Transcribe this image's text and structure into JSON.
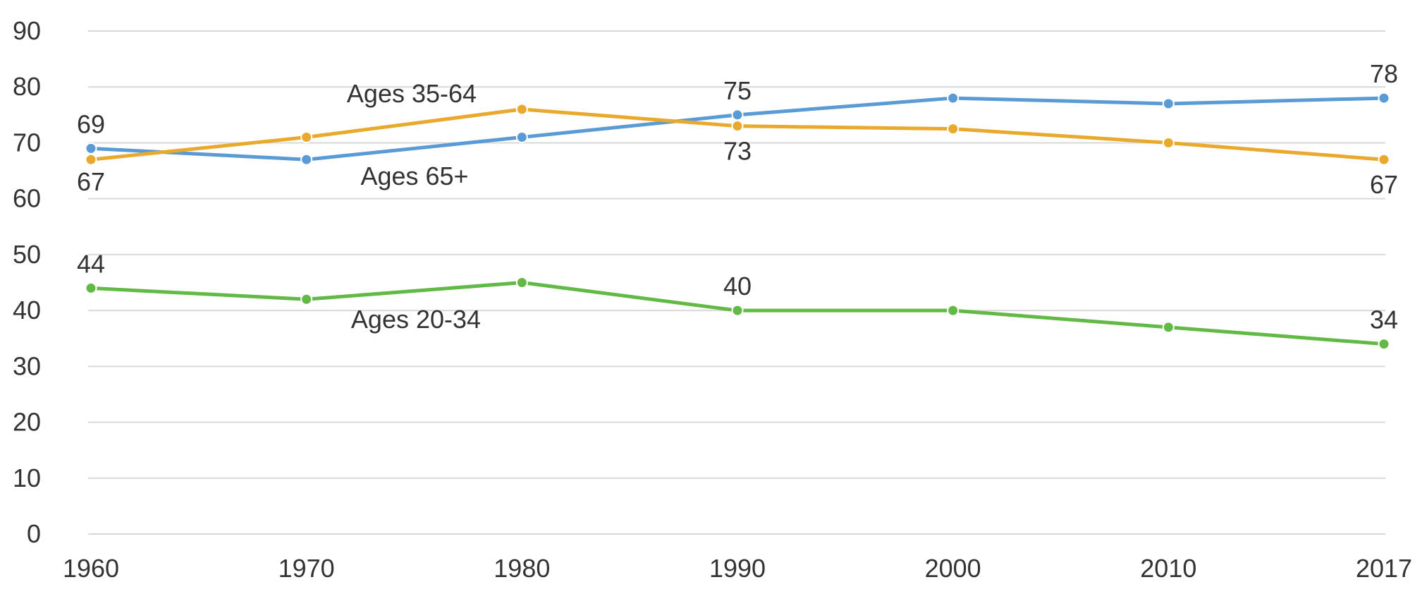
{
  "chart_data": {
    "type": "line",
    "title": "",
    "xlabel": "",
    "ylabel": "",
    "x": [
      1960,
      1970,
      1980,
      1990,
      2000,
      2010,
      2017
    ],
    "ylim": [
      0,
      90
    ],
    "yticks": [
      0,
      10,
      20,
      30,
      40,
      50,
      60,
      70,
      80,
      90
    ],
    "grid": true,
    "legend": "none",
    "series": [
      {
        "name": "Ages 65+",
        "color": "#5b9bd5",
        "values": [
          69,
          67,
          71,
          75,
          78,
          77,
          78
        ],
        "value_labels": {
          "0": "69",
          "3": "75",
          "6": "78"
        }
      },
      {
        "name": "Ages 35-64",
        "color": "#e8a92c",
        "values": [
          67,
          71,
          76,
          73,
          72.5,
          70,
          67
        ],
        "value_labels": {
          "0": "67",
          "3": "73",
          "6": "67"
        }
      },
      {
        "name": "Ages 20-34",
        "color": "#63b946",
        "values": [
          44,
          42,
          45,
          40,
          40,
          37,
          34
        ],
        "value_labels": {
          "0": "44",
          "3": "40",
          "6": "34"
        }
      }
    ]
  }
}
